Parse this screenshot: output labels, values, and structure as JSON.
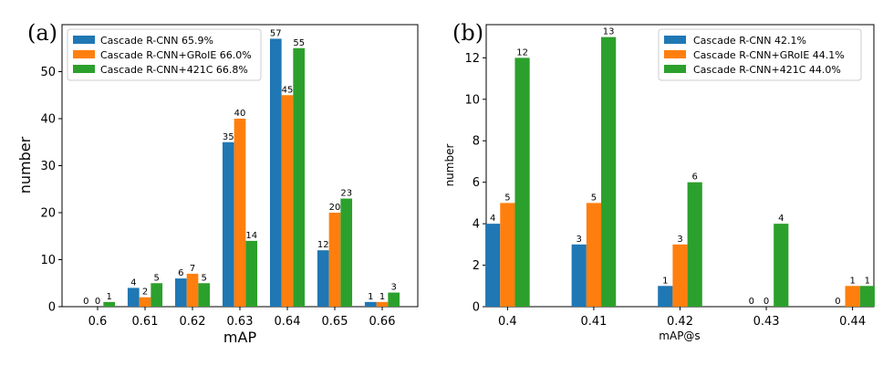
{
  "colors": {
    "series1": "#1f77b4",
    "series2": "#ff7f0e",
    "series3": "#2ca02c"
  },
  "chart_data": [
    {
      "panel": "(a)",
      "type": "bar",
      "xlabel": "mAP",
      "ylabel": "number",
      "categories": [
        "0.6",
        "0.61",
        "0.62",
        "0.63",
        "0.64",
        "0.65",
        "0.66"
      ],
      "ylim": [
        0,
        60
      ],
      "yticks": [
        0,
        10,
        20,
        30,
        40,
        50
      ],
      "legend_position": "top-left",
      "series": [
        {
          "name": "Cascade R-CNN 65.9%",
          "values": [
            0,
            4,
            6,
            35,
            57,
            12,
            1
          ]
        },
        {
          "name": "Cascade R-CNN+GRoIE 66.0%",
          "values": [
            0,
            2,
            7,
            40,
            45,
            20,
            1
          ]
        },
        {
          "name": "Cascade R-CNN+421C 66.8%",
          "values": [
            1,
            5,
            5,
            14,
            55,
            23,
            3
          ]
        }
      ]
    },
    {
      "panel": "(b)",
      "type": "bar",
      "xlabel": "mAP@s",
      "ylabel": "number",
      "categories": [
        "0.4",
        "0.41",
        "0.42",
        "0.43",
        "0.44"
      ],
      "ylim": [
        0,
        13.6
      ],
      "yticks": [
        0,
        2,
        4,
        6,
        8,
        10,
        12
      ],
      "legend_position": "top-right",
      "series": [
        {
          "name": "Cascade R-CNN 42.1%",
          "values": [
            4,
            3,
            1,
            0,
            0
          ]
        },
        {
          "name": "Cascade R-CNN+GRoIE 44.1%",
          "values": [
            5,
            5,
            3,
            0,
            1
          ]
        },
        {
          "name": "Cascade R-CNN+421C 44.0%",
          "values": [
            12,
            13,
            6,
            4,
            1
          ]
        }
      ]
    }
  ]
}
